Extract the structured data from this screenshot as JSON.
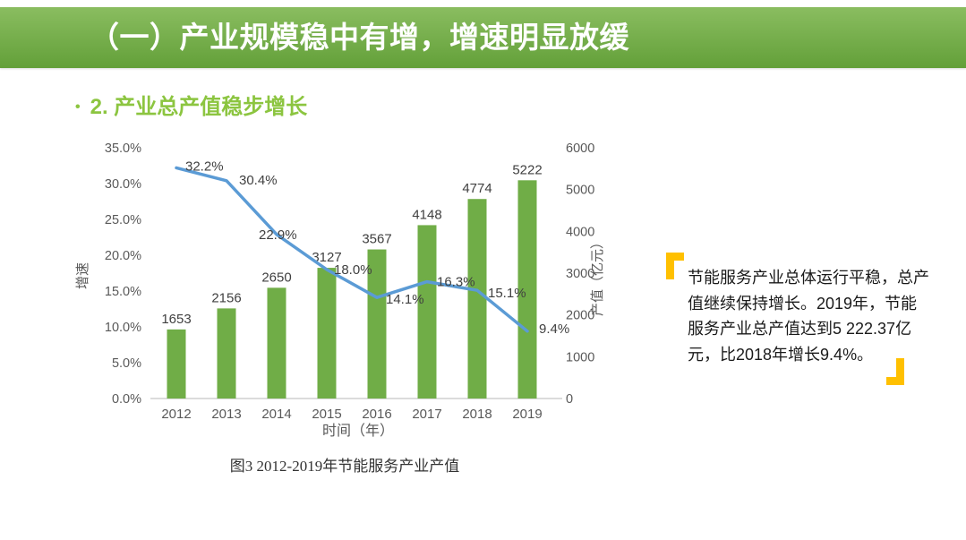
{
  "header": {
    "title": "（一）产业规模稳中有增，增速明显放缓"
  },
  "section": {
    "bullet": "•",
    "heading": "2. 产业总产值稳步增长"
  },
  "quote": {
    "lines": [
      "节能服务产业总体运行平稳，总产",
      "值继续保持增长。2019年，节能",
      "服务产业总产值达到5 222.37亿",
      "元，比2018年增长9.4%。"
    ]
  },
  "colors": {
    "header_gradient_top": "#8abd60",
    "header_gradient_bottom": "#63a039",
    "heading_green": "#8cc540",
    "quote_yellow": "#ffc000",
    "bar_green": "#70ad47",
    "line_blue": "#5b9bd5",
    "axis_text": "#595959",
    "label_text": "#404040",
    "axis_line": "#cfcfcf"
  },
  "chart_data": {
    "type": "combo",
    "title": "",
    "categories": [
      "2012",
      "2013",
      "2014",
      "2015",
      "2016",
      "2017",
      "2018",
      "2019"
    ],
    "series": [
      {
        "name": "产值",
        "type": "bar",
        "axis": "right",
        "values": [
          1653,
          2156,
          2650,
          3127,
          3567,
          4148,
          4774,
          5222
        ],
        "labels": [
          "1653",
          "2156",
          "2650",
          "3127",
          "3567",
          "4148",
          "4774",
          "5222"
        ],
        "color": "#70ad47"
      },
      {
        "name": "增速",
        "type": "line",
        "axis": "left",
        "values": [
          32.2,
          30.4,
          22.9,
          18.0,
          14.1,
          16.3,
          15.1,
          9.4
        ],
        "labels": [
          "32.2%",
          "30.4%",
          "22.9%",
          "18.0%",
          "14.1%",
          "16.3%",
          "15.1%",
          "9.4%"
        ],
        "color": "#5b9bd5"
      }
    ],
    "left_axis": {
      "title": "增速",
      "min": 0,
      "max": 35,
      "ticks": [
        "0.0%",
        "5.0%",
        "10.0%",
        "15.0%",
        "20.0%",
        "25.0%",
        "30.0%",
        "35.0%"
      ]
    },
    "right_axis": {
      "title": "产值（亿元）",
      "min": 0,
      "max": 6000,
      "ticks": [
        "0",
        "1000",
        "2000",
        "3000",
        "4000",
        "5000",
        "6000"
      ]
    },
    "xlabel": "时间（年）",
    "caption": "图3 2012-2019年节能服务产业产值",
    "grid": false,
    "legend": "none"
  }
}
